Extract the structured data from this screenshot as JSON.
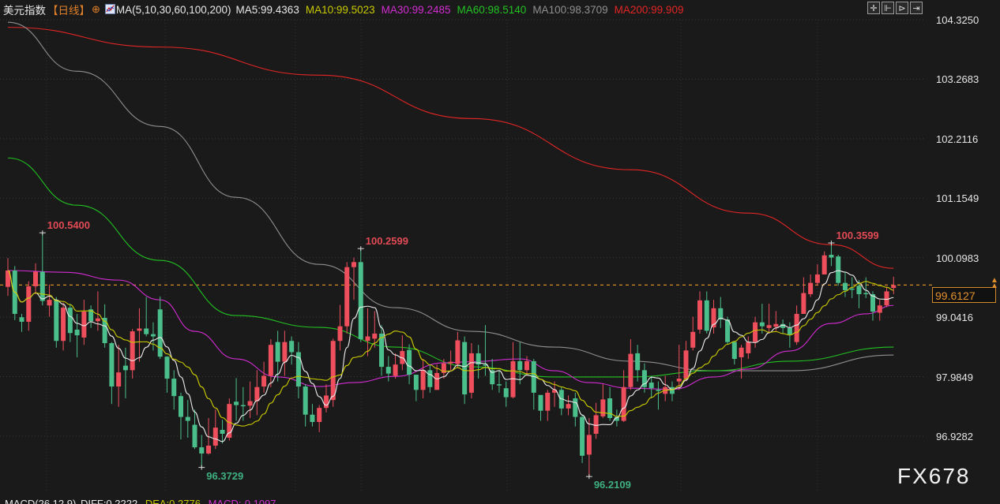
{
  "header": {
    "title": "美元指数",
    "period": "【日线】",
    "ma_params": "MA(5,10,30,60,100,200)",
    "ma_values": [
      {
        "label": "MA5:99.4363",
        "color": "#e8e8e8"
      },
      {
        "label": "MA10:99.5023",
        "color": "#c9c900"
      },
      {
        "label": "MA30:99.2485",
        "color": "#d22cd2"
      },
      {
        "label": "MA60:98.5140",
        "color": "#22c322"
      },
      {
        "label": "MA100:98.3709",
        "color": "#8f8f8f"
      },
      {
        "label": "MA200:99.909",
        "color": "#e22525"
      }
    ]
  },
  "toolbar": {
    "icons": [
      "crosshair-icon",
      "zoom-in-icon",
      "play-icon",
      "exit-icon"
    ]
  },
  "current_price": "99.6127",
  "watermark": "FX678",
  "macd": {
    "params": "MACD(26,12,9)",
    "diff": "DIFF:0.2222",
    "dea": "DEA:0.2776",
    "macd": "MACD:-0.1097"
  },
  "chart_data": {
    "type": "candlestick",
    "title": "美元指数",
    "ylim": [
      96.0,
      104.4
    ],
    "y_ticks": [
      "104.3250",
      "103.2683",
      "102.2116",
      "101.1549",
      "100.0983",
      "99.0416",
      "97.9849",
      "96.9282"
    ],
    "grid": true,
    "colors": {
      "up": "#ef4f5c",
      "down": "#4bbf8b",
      "ma5": "#e8e8e8",
      "ma10": "#c9c900",
      "ma30": "#d22cd2",
      "ma60": "#22c322",
      "ma100": "#8f8f8f",
      "ma200": "#e22525",
      "last_price": "#d38a2b"
    },
    "last_price": 99.6127,
    "annotations": [
      {
        "text": "100.5400",
        "index": 5,
        "value": 100.54,
        "kind": "high"
      },
      {
        "text": "96.3729",
        "index": 28,
        "value": 96.3729,
        "kind": "low"
      },
      {
        "text": "100.2599",
        "index": 51,
        "value": 100.2599,
        "kind": "high"
      },
      {
        "text": "96.2109",
        "index": 84,
        "value": 96.2109,
        "kind": "low"
      },
      {
        "text": "100.3599",
        "index": 119,
        "value": 100.3599,
        "kind": "high"
      }
    ],
    "ohlc": [
      [
        99.58,
        100.09,
        99.42,
        99.87
      ],
      [
        99.87,
        99.95,
        98.99,
        99.1
      ],
      [
        99.04,
        99.1,
        98.78,
        98.96
      ],
      [
        98.96,
        99.68,
        98.8,
        99.59
      ],
      [
        99.59,
        100.0,
        99.45,
        99.85
      ],
      [
        99.85,
        100.54,
        99.25,
        99.33
      ],
      [
        99.25,
        99.62,
        99.05,
        99.35
      ],
      [
        99.35,
        99.4,
        98.5,
        98.62
      ],
      [
        98.62,
        99.3,
        98.45,
        99.21
      ],
      [
        99.21,
        99.28,
        98.6,
        98.76
      ],
      [
        98.82,
        99.1,
        98.33,
        98.72
      ],
      [
        98.68,
        99.35,
        98.55,
        99.14
      ],
      [
        99.18,
        99.25,
        98.85,
        98.97
      ],
      [
        98.97,
        99.5,
        98.8,
        99.02
      ],
      [
        99.03,
        99.27,
        98.5,
        98.58
      ],
      [
        98.58,
        98.6,
        97.5,
        97.81
      ],
      [
        97.81,
        98.55,
        97.45,
        98.06
      ],
      [
        98.18,
        98.5,
        97.6,
        98.1
      ],
      [
        98.1,
        98.83,
        97.95,
        98.79
      ],
      [
        98.8,
        99.2,
        98.25,
        98.84
      ],
      [
        98.84,
        99.4,
        98.7,
        98.74
      ],
      [
        98.74,
        98.95,
        98.45,
        98.7
      ],
      [
        99.18,
        99.41,
        98.3,
        98.34
      ],
      [
        98.34,
        98.35,
        97.7,
        97.95
      ],
      [
        97.95,
        98.1,
        97.4,
        97.64
      ],
      [
        97.64,
        97.7,
        96.87,
        97.27
      ],
      [
        97.27,
        97.57,
        96.9,
        97.2
      ],
      [
        97.13,
        97.4,
        96.7,
        96.73
      ],
      [
        96.73,
        96.95,
        96.37,
        96.62
      ],
      [
        96.62,
        97.25,
        96.6,
        96.76
      ],
      [
        96.76,
        97.4,
        96.7,
        97.08
      ],
      [
        97.04,
        97.22,
        96.8,
        96.97
      ],
      [
        96.9,
        97.6,
        96.85,
        97.5
      ],
      [
        97.54,
        97.96,
        97.2,
        97.48
      ],
      [
        97.48,
        97.8,
        97.2,
        97.46
      ],
      [
        97.47,
        97.9,
        97.25,
        97.55
      ],
      [
        97.55,
        98.1,
        97.3,
        97.8
      ],
      [
        97.81,
        98.25,
        97.7,
        98.0
      ],
      [
        98.0,
        98.65,
        97.8,
        98.55
      ],
      [
        98.6,
        98.8,
        97.9,
        98.25
      ],
      [
        98.25,
        98.8,
        98.0,
        98.6
      ],
      [
        98.62,
        98.7,
        98.2,
        98.42
      ],
      [
        98.42,
        98.6,
        97.6,
        97.81
      ],
      [
        97.81,
        97.85,
        97.1,
        97.31
      ],
      [
        97.31,
        97.5,
        97.1,
        97.18
      ],
      [
        97.18,
        97.48,
        97.0,
        97.43
      ],
      [
        97.43,
        97.85,
        97.35,
        97.65
      ],
      [
        97.57,
        98.66,
        97.45,
        98.62
      ],
      [
        98.62,
        99.26,
        98.45,
        98.88
      ],
      [
        98.88,
        100.02,
        98.75,
        99.93
      ],
      [
        99.93,
        100.1,
        99.35,
        100.02
      ],
      [
        100.02,
        100.26,
        98.6,
        98.65
      ],
      [
        98.62,
        99.2,
        98.35,
        98.7
      ],
      [
        98.66,
        99.15,
        98.5,
        98.75
      ],
      [
        98.75,
        98.9,
        98.0,
        98.16
      ],
      [
        98.16,
        98.35,
        97.9,
        98.04
      ],
      [
        98.0,
        98.4,
        97.95,
        98.2
      ],
      [
        98.21,
        98.72,
        98.1,
        98.44
      ],
      [
        98.46,
        98.56,
        97.85,
        98.02
      ],
      [
        98.02,
        98.0,
        97.55,
        97.75
      ],
      [
        97.75,
        98.3,
        97.6,
        98.1
      ],
      [
        98.1,
        98.2,
        97.7,
        97.8
      ],
      [
        97.75,
        98.2,
        97.75,
        98.05
      ],
      [
        98.05,
        98.3,
        97.95,
        98.22
      ],
      [
        98.22,
        98.45,
        98.1,
        98.25
      ],
      [
        98.21,
        98.78,
        98.15,
        98.63
      ],
      [
        98.6,
        98.7,
        97.5,
        97.67
      ],
      [
        97.7,
        98.58,
        97.6,
        98.4
      ],
      [
        98.4,
        98.55,
        97.95,
        98.2
      ],
      [
        98.2,
        98.9,
        98.0,
        98.18
      ],
      [
        98.1,
        98.3,
        97.75,
        97.85
      ],
      [
        97.85,
        98.1,
        97.7,
        97.83
      ],
      [
        97.78,
        97.9,
        97.45,
        97.62
      ],
      [
        97.62,
        98.6,
        97.6,
        98.26
      ],
      [
        98.26,
        98.6,
        97.85,
        98.1
      ],
      [
        98.1,
        98.35,
        98.0,
        98.26
      ],
      [
        98.26,
        98.3,
        97.4,
        97.7
      ],
      [
        97.66,
        97.65,
        97.2,
        97.38
      ],
      [
        97.38,
        97.75,
        97.2,
        97.7
      ],
      [
        97.7,
        97.9,
        97.45,
        97.75
      ],
      [
        97.75,
        97.8,
        97.3,
        97.42
      ],
      [
        97.42,
        97.65,
        97.3,
        97.5
      ],
      [
        97.6,
        97.7,
        97.1,
        97.27
      ],
      [
        97.27,
        97.3,
        96.45,
        96.58
      ],
      [
        96.6,
        97.25,
        96.21,
        96.95
      ],
      [
        96.97,
        97.52,
        96.88,
        97.3
      ],
      [
        97.28,
        97.85,
        97.25,
        97.58
      ],
      [
        97.6,
        97.8,
        97.2,
        97.25
      ],
      [
        97.27,
        97.4,
        97.1,
        97.2
      ],
      [
        97.2,
        98.1,
        97.18,
        97.8
      ],
      [
        97.8,
        98.65,
        97.75,
        98.39
      ],
      [
        98.4,
        98.55,
        97.9,
        98.1
      ],
      [
        98.1,
        98.22,
        97.7,
        97.8
      ],
      [
        97.88,
        98.0,
        97.6,
        97.78
      ],
      [
        97.75,
        97.9,
        97.4,
        97.73
      ],
      [
        97.68,
        98.0,
        97.55,
        97.8
      ],
      [
        97.8,
        97.9,
        97.55,
        97.68
      ],
      [
        97.9,
        98.55,
        97.75,
        97.95
      ],
      [
        97.95,
        98.62,
        97.9,
        98.45
      ],
      [
        98.5,
        99.05,
        98.45,
        98.78
      ],
      [
        98.82,
        99.5,
        98.75,
        99.34
      ],
      [
        99.34,
        99.5,
        98.75,
        98.8
      ],
      [
        98.86,
        99.35,
        98.75,
        99.2
      ],
      [
        99.2,
        99.4,
        98.85,
        99.0
      ],
      [
        99.0,
        99.05,
        98.55,
        98.6
      ],
      [
        98.6,
        98.62,
        98.2,
        98.3
      ],
      [
        98.33,
        98.55,
        97.95,
        98.5
      ],
      [
        98.4,
        98.7,
        98.3,
        98.6
      ],
      [
        98.6,
        99.05,
        98.5,
        98.95
      ],
      [
        98.95,
        99.28,
        98.75,
        98.88
      ],
      [
        98.85,
        99.28,
        98.75,
        98.9
      ],
      [
        98.87,
        99.15,
        98.8,
        98.92
      ],
      [
        98.92,
        99.0,
        98.75,
        98.85
      ],
      [
        98.85,
        98.95,
        98.5,
        98.73
      ],
      [
        98.6,
        99.25,
        98.55,
        99.1
      ],
      [
        99.1,
        99.75,
        99.1,
        99.47
      ],
      [
        99.45,
        99.8,
        99.4,
        99.65
      ],
      [
        99.65,
        99.98,
        99.6,
        99.8
      ],
      [
        99.8,
        100.21,
        99.8,
        100.14
      ],
      [
        100.15,
        100.36,
        99.95,
        100.1
      ],
      [
        100.12,
        100.15,
        99.6,
        99.65
      ],
      [
        99.65,
        99.85,
        99.4,
        99.52
      ],
      [
        99.55,
        99.75,
        99.38,
        99.53
      ],
      [
        99.6,
        99.7,
        99.2,
        99.45
      ],
      [
        99.47,
        99.75,
        99.38,
        99.45
      ],
      [
        99.45,
        99.5,
        98.98,
        99.14
      ],
      [
        99.12,
        99.35,
        98.98,
        99.25
      ],
      [
        99.25,
        99.58,
        99.22,
        99.5
      ],
      [
        99.56,
        99.76,
        99.45,
        99.61
      ]
    ],
    "moving_averages": {
      "ma200": [
        [
          0,
          104.19
        ],
        [
          22,
          103.84
        ],
        [
          45,
          103.34
        ],
        [
          67,
          102.57
        ],
        [
          90,
          101.66
        ],
        [
          107,
          100.89
        ],
        [
          119,
          100.33
        ],
        [
          128,
          99.91
        ]
      ],
      "ma100": [
        [
          0,
          104.28
        ],
        [
          10,
          103.41
        ],
        [
          22,
          102.43
        ],
        [
          33,
          101.17
        ],
        [
          45,
          99.98
        ],
        [
          56,
          99.21
        ],
        [
          67,
          98.79
        ],
        [
          79,
          98.51
        ],
        [
          90,
          98.26
        ],
        [
          102,
          98.09
        ],
        [
          113,
          98.09
        ],
        [
          128,
          98.37
        ]
      ],
      "ma60": [
        [
          0,
          101.87
        ],
        [
          10,
          101.03
        ],
        [
          22,
          100.05
        ],
        [
          33,
          99.07
        ],
        [
          45,
          98.86
        ],
        [
          56,
          98.51
        ],
        [
          67,
          98.16
        ],
        [
          79,
          97.98
        ],
        [
          90,
          97.98
        ],
        [
          102,
          98.09
        ],
        [
          113,
          98.26
        ],
        [
          128,
          98.51
        ]
      ],
      "ma30": [
        [
          0,
          99.87
        ],
        [
          8,
          99.84
        ],
        [
          16,
          99.7
        ],
        [
          22,
          99.35
        ],
        [
          27,
          98.79
        ],
        [
          33,
          98.3
        ],
        [
          39,
          97.98
        ],
        [
          45,
          97.81
        ],
        [
          50,
          97.88
        ],
        [
          56,
          97.99
        ],
        [
          63,
          98.23
        ],
        [
          67,
          98.25
        ],
        [
          74,
          98.3
        ],
        [
          79,
          98.09
        ],
        [
          84,
          97.88
        ],
        [
          90,
          97.78
        ],
        [
          96,
          97.76
        ],
        [
          102,
          97.98
        ],
        [
          107,
          98.12
        ],
        [
          113,
          98.44
        ],
        [
          119,
          98.93
        ],
        [
          124,
          99.1
        ],
        [
          128,
          99.25
        ]
      ]
    }
  }
}
